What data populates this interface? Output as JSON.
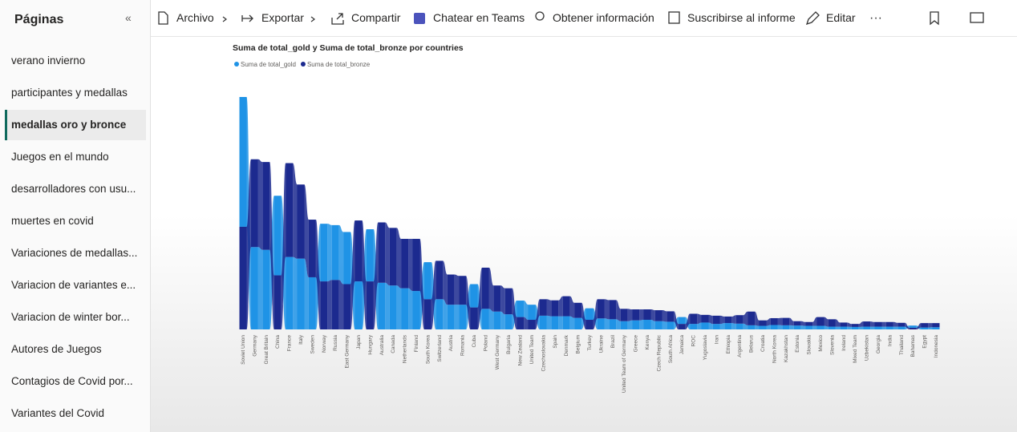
{
  "sidebar": {
    "title": "Páginas",
    "pages": [
      "verano invierno",
      "participantes y medallas",
      "medallas oro y bronce",
      "Juegos en el mundo",
      "desarrolladores con usu...",
      "muertes en covid",
      "Variaciones de medallas...",
      "Variacion de variantes e...",
      "Variacion de winter bor...",
      "Autores de Juegos",
      "Contagios de Covid por...",
      "Variantes del Covid"
    ],
    "selected": 2
  },
  "toolbar": {
    "items": [
      "Archivo",
      "Exportar",
      "Compartir",
      "Chatear en Teams",
      "Obtener información",
      "Suscribirse al informe",
      "Editar"
    ]
  },
  "chart_data": {
    "type": "ribbon",
    "title": "Suma de total_gold y Suma de total_bronze por countries",
    "categories": [
      "Soviet Union",
      "Germany",
      "Great Britain",
      "China",
      "France",
      "Italy",
      "Sweden",
      "Norway",
      "Russia",
      "East Germany",
      "Japan",
      "Hungary",
      "Australia",
      "Canada",
      "Netherlands",
      "Finland",
      "South Korea",
      "Switzerland",
      "Austria",
      "Romania",
      "Cuba",
      "Poland",
      "West Germany",
      "Bulgaria",
      "New Zealand",
      "United Team",
      "Czechoslovakia",
      "Spain",
      "Denmark",
      "Belgium",
      "Turkey",
      "Ukraine",
      "Brazil",
      "United Team of Germany",
      "Greece",
      "Kenya",
      "Czech Republic",
      "South Africa",
      "Jamaica",
      "ROC",
      "Yugoslavia",
      "Iran",
      "Ethiopia",
      "Argentina",
      "Belarus",
      "Croatia",
      "North Korea",
      "Kazakhstan",
      "Estonia",
      "Slovakia",
      "Mexico",
      "Slovenia",
      "Ireland",
      "Mixed Team",
      "Uzbekistan",
      "Georgia",
      "India",
      "Thailand",
      "Bahamas",
      "Egypt",
      "Indonesia"
    ],
    "series": [
      {
        "name": "Suma de total_gold",
        "color": "#1f93e6",
        "values": [
          473,
          300,
          290,
          290,
          264,
          258,
          190,
          210,
          200,
          190,
          175,
          190,
          170,
          160,
          150,
          140,
          135,
          110,
          90,
          90,
          85,
          75,
          65,
          55,
          60,
          55,
          50,
          48,
          48,
          42,
          42,
          40,
          37,
          30,
          33,
          35,
          30,
          28,
          25,
          20,
          25,
          20,
          23,
          21,
          15,
          13,
          16,
          15,
          14,
          13,
          13,
          10,
          10,
          9,
          10,
          10,
          10,
          10,
          8,
          7,
          8
        ]
      },
      {
        "name": "Suma de total_bronze",
        "color": "#1c2a8f",
        "values": [
          374,
          320,
          320,
          197,
          342,
          270,
          210,
          175,
          180,
          165,
          222,
          175,
          220,
          210,
          180,
          190,
          110,
          140,
          110,
          105,
          80,
          150,
          95,
          95,
          45,
          35,
          60,
          58,
          73,
          55,
          35,
          70,
          70,
          45,
          40,
          38,
          40,
          38,
          20,
          37,
          28,
          30,
          24,
          31,
          50,
          20,
          25,
          27,
          16,
          14,
          32,
          27,
          15,
          11,
          19,
          17,
          17,
          14,
          6,
          16,
          15
        ]
      }
    ]
  }
}
